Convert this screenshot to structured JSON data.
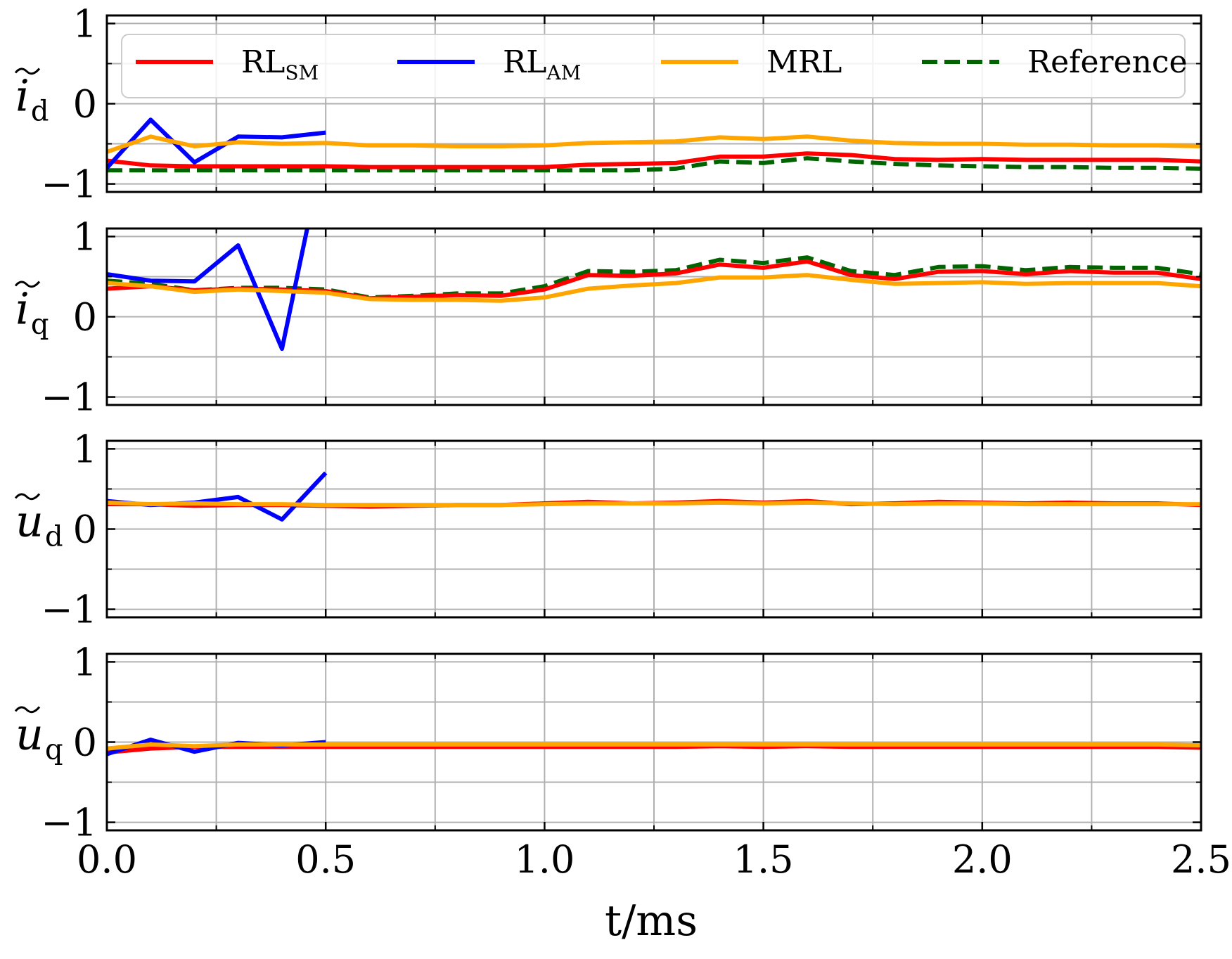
{
  "chart_data": {
    "type": "line",
    "layout": "4 vertically stacked subplots sharing x axis",
    "xlabel": "t/ms",
    "xlim": [
      0.0,
      2.5
    ],
    "x_ticks": [
      0.0,
      0.5,
      1.0,
      1.5,
      2.0,
      2.5
    ],
    "x_tick_labels": [
      "0.0",
      "0.5",
      "1.0",
      "1.5",
      "2.0",
      "2.5"
    ],
    "x_minor_ticks": [
      0.25,
      0.75,
      1.25,
      1.75,
      2.25
    ],
    "grid": true,
    "legend": {
      "placement": "top (inside first subplot), 4 columns",
      "entries": [
        {
          "key": "rl_sm",
          "text": "RL",
          "subscript": "SM"
        },
        {
          "key": "rl_am",
          "text": "RL",
          "subscript": "AM"
        },
        {
          "key": "mrl",
          "text": "MRL",
          "subscript": ""
        },
        {
          "key": "reference",
          "text": "Reference",
          "subscript": ""
        }
      ]
    },
    "colors": {
      "rl_sm": "#ff0000",
      "rl_am": "#0000ff",
      "mrl": "#ffa500",
      "reference": "#006400",
      "grid": "#b0b0b0"
    },
    "subplots": [
      {
        "ylabel_base": "i",
        "ylabel_sub": "d",
        "ylim": [
          -1.1,
          1.1
        ],
        "y_ticks": [
          -1,
          0,
          1
        ],
        "y_tick_labels": [
          "−1",
          "0",
          "1"
        ],
        "series": [
          {
            "key": "reference",
            "style": "dashed",
            "x": [
              0,
              0.1,
              0.2,
              0.3,
              0.4,
              0.5,
              0.6,
              0.7,
              0.8,
              0.9,
              1.0,
              1.1,
              1.2,
              1.3,
              1.4,
              1.5,
              1.6,
              1.7,
              1.8,
              1.9,
              2.0,
              2.1,
              2.2,
              2.3,
              2.4,
              2.5
            ],
            "y": [
              -0.83,
              -0.83,
              -0.83,
              -0.83,
              -0.83,
              -0.83,
              -0.83,
              -0.83,
              -0.83,
              -0.83,
              -0.83,
              -0.83,
              -0.83,
              -0.81,
              -0.72,
              -0.74,
              -0.68,
              -0.72,
              -0.75,
              -0.77,
              -0.78,
              -0.79,
              -0.79,
              -0.8,
              -0.8,
              -0.81
            ]
          },
          {
            "key": "rl_sm",
            "style": "solid",
            "x": [
              0,
              0.1,
              0.2,
              0.3,
              0.4,
              0.5,
              0.6,
              0.7,
              0.8,
              0.9,
              1.0,
              1.1,
              1.2,
              1.3,
              1.4,
              1.5,
              1.6,
              1.7,
              1.8,
              1.9,
              2.0,
              2.1,
              2.2,
              2.3,
              2.4,
              2.5
            ],
            "y": [
              -0.71,
              -0.77,
              -0.78,
              -0.78,
              -0.78,
              -0.78,
              -0.79,
              -0.79,
              -0.79,
              -0.79,
              -0.79,
              -0.76,
              -0.75,
              -0.74,
              -0.66,
              -0.66,
              -0.62,
              -0.64,
              -0.69,
              -0.7,
              -0.69,
              -0.7,
              -0.7,
              -0.7,
              -0.7,
              -0.72
            ]
          },
          {
            "key": "rl_am",
            "style": "solid",
            "x": [
              0,
              0.1,
              0.2,
              0.3,
              0.4,
              0.5
            ],
            "y": [
              -0.8,
              -0.2,
              -0.73,
              -0.41,
              -0.42,
              -0.36
            ]
          },
          {
            "key": "mrl",
            "style": "solid",
            "x": [
              0,
              0.1,
              0.2,
              0.3,
              0.4,
              0.5,
              0.6,
              0.7,
              0.8,
              0.9,
              1.0,
              1.1,
              1.2,
              1.3,
              1.4,
              1.5,
              1.6,
              1.7,
              1.8,
              1.9,
              2.0,
              2.1,
              2.2,
              2.3,
              2.4,
              2.5
            ],
            "y": [
              -0.6,
              -0.41,
              -0.53,
              -0.48,
              -0.5,
              -0.49,
              -0.52,
              -0.52,
              -0.53,
              -0.53,
              -0.52,
              -0.49,
              -0.48,
              -0.47,
              -0.42,
              -0.44,
              -0.41,
              -0.46,
              -0.49,
              -0.5,
              -0.5,
              -0.51,
              -0.51,
              -0.52,
              -0.52,
              -0.53
            ]
          }
        ]
      },
      {
        "ylabel_base": "i",
        "ylabel_sub": "q",
        "ylim": [
          -1.1,
          1.1
        ],
        "y_ticks": [
          -1,
          0,
          1
        ],
        "y_tick_labels": [
          "−1",
          "0",
          "1"
        ],
        "series": [
          {
            "key": "reference",
            "style": "dashed",
            "x": [
              0,
              0.1,
              0.2,
              0.3,
              0.4,
              0.5,
              0.6,
              0.7,
              0.8,
              0.9,
              1.0,
              1.1,
              1.2,
              1.3,
              1.4,
              1.5,
              1.6,
              1.7,
              1.8,
              1.9,
              2.0,
              2.1,
              2.2,
              2.3,
              2.4,
              2.5
            ],
            "y": [
              0.45,
              0.41,
              0.33,
              0.36,
              0.36,
              0.34,
              0.24,
              0.26,
              0.29,
              0.29,
              0.38,
              0.57,
              0.56,
              0.58,
              0.71,
              0.67,
              0.74,
              0.57,
              0.52,
              0.62,
              0.63,
              0.58,
              0.62,
              0.61,
              0.61,
              0.53
            ]
          },
          {
            "key": "rl_sm",
            "style": "solid",
            "x": [
              0,
              0.1,
              0.2,
              0.3,
              0.4,
              0.5,
              0.6,
              0.7,
              0.8,
              0.9,
              1.0,
              1.1,
              1.2,
              1.3,
              1.4,
              1.5,
              1.6,
              1.7,
              1.8,
              1.9,
              2.0,
              2.1,
              2.2,
              2.3,
              2.4,
              2.5
            ],
            "y": [
              0.35,
              0.38,
              0.33,
              0.35,
              0.34,
              0.32,
              0.23,
              0.25,
              0.27,
              0.26,
              0.34,
              0.52,
              0.51,
              0.54,
              0.65,
              0.61,
              0.69,
              0.52,
              0.47,
              0.56,
              0.57,
              0.53,
              0.57,
              0.55,
              0.55,
              0.47
            ]
          },
          {
            "key": "rl_am",
            "style": "solid",
            "x": [
              0,
              0.1,
              0.2,
              0.3,
              0.4,
              0.5
            ],
            "y": [
              0.53,
              0.45,
              0.44,
              0.89,
              -0.4,
              2.2
            ]
          },
          {
            "key": "mrl",
            "style": "solid",
            "x": [
              0,
              0.1,
              0.2,
              0.3,
              0.4,
              0.5,
              0.6,
              0.7,
              0.8,
              0.9,
              1.0,
              1.1,
              1.2,
              1.3,
              1.4,
              1.5,
              1.6,
              1.7,
              1.8,
              1.9,
              2.0,
              2.1,
              2.2,
              2.3,
              2.4,
              2.5
            ],
            "y": [
              0.42,
              0.38,
              0.31,
              0.34,
              0.32,
              0.3,
              0.22,
              0.21,
              0.21,
              0.2,
              0.24,
              0.35,
              0.39,
              0.42,
              0.49,
              0.49,
              0.52,
              0.46,
              0.41,
              0.42,
              0.43,
              0.41,
              0.42,
              0.42,
              0.42,
              0.38
            ]
          }
        ]
      },
      {
        "ylabel_base": "u",
        "ylabel_sub": "d",
        "ylim": [
          -1.1,
          1.1
        ],
        "y_ticks": [
          -1,
          0,
          1
        ],
        "y_tick_labels": [
          "−1",
          "0",
          "1"
        ],
        "series": [
          {
            "key": "rl_sm",
            "style": "solid",
            "x": [
              0,
              0.1,
              0.2,
              0.3,
              0.4,
              0.5,
              0.6,
              0.7,
              0.8,
              0.9,
              1.0,
              1.1,
              1.2,
              1.3,
              1.4,
              1.5,
              1.6,
              1.7,
              1.8,
              1.9,
              2.0,
              2.1,
              2.2,
              2.3,
              2.4,
              2.5
            ],
            "y": [
              0.31,
              0.31,
              0.29,
              0.3,
              0.3,
              0.29,
              0.28,
              0.29,
              0.3,
              0.3,
              0.32,
              0.34,
              0.32,
              0.33,
              0.35,
              0.33,
              0.35,
              0.31,
              0.32,
              0.34,
              0.33,
              0.32,
              0.33,
              0.32,
              0.32,
              0.3
            ]
          },
          {
            "key": "rl_am",
            "style": "solid",
            "x": [
              0,
              0.1,
              0.2,
              0.3,
              0.4,
              0.5
            ],
            "y": [
              0.35,
              0.3,
              0.33,
              0.4,
              0.12,
              0.7
            ]
          },
          {
            "key": "mrl",
            "style": "solid",
            "x": [
              0,
              0.1,
              0.2,
              0.3,
              0.4,
              0.5,
              0.6,
              0.7,
              0.8,
              0.9,
              1.0,
              1.1,
              1.2,
              1.3,
              1.4,
              1.5,
              1.6,
              1.7,
              1.8,
              1.9,
              2.0,
              2.1,
              2.2,
              2.3,
              2.4,
              2.5
            ],
            "y": [
              0.33,
              0.31,
              0.32,
              0.31,
              0.31,
              0.3,
              0.3,
              0.3,
              0.3,
              0.3,
              0.31,
              0.32,
              0.32,
              0.32,
              0.33,
              0.32,
              0.33,
              0.32,
              0.31,
              0.32,
              0.32,
              0.31,
              0.31,
              0.31,
              0.31,
              0.31
            ]
          }
        ]
      },
      {
        "ylabel_base": "u",
        "ylabel_sub": "q",
        "ylim": [
          -1.1,
          1.1
        ],
        "y_ticks": [
          -1,
          0,
          1
        ],
        "y_tick_labels": [
          "−1",
          "0",
          "1"
        ],
        "series": [
          {
            "key": "rl_sm",
            "style": "solid",
            "x": [
              0,
              0.1,
              0.2,
              0.3,
              0.4,
              0.5,
              0.6,
              0.7,
              0.8,
              0.9,
              1.0,
              1.1,
              1.2,
              1.3,
              1.4,
              1.5,
              1.6,
              1.7,
              1.8,
              1.9,
              2.0,
              2.1,
              2.2,
              2.3,
              2.4,
              2.5
            ],
            "y": [
              -0.13,
              -0.08,
              -0.06,
              -0.06,
              -0.06,
              -0.06,
              -0.06,
              -0.06,
              -0.06,
              -0.06,
              -0.06,
              -0.06,
              -0.06,
              -0.06,
              -0.05,
              -0.06,
              -0.05,
              -0.06,
              -0.06,
              -0.06,
              -0.06,
              -0.06,
              -0.06,
              -0.06,
              -0.06,
              -0.07
            ]
          },
          {
            "key": "rl_am",
            "style": "solid",
            "x": [
              0,
              0.1,
              0.2,
              0.3,
              0.4,
              0.5
            ],
            "y": [
              -0.15,
              0.03,
              -0.12,
              -0.01,
              -0.04,
              0.0
            ]
          },
          {
            "key": "mrl",
            "style": "solid",
            "x": [
              0,
              0.1,
              0.2,
              0.3,
              0.4,
              0.5,
              0.6,
              0.7,
              0.8,
              0.9,
              1.0,
              1.1,
              1.2,
              1.3,
              1.4,
              1.5,
              1.6,
              1.7,
              1.8,
              1.9,
              2.0,
              2.1,
              2.2,
              2.3,
              2.4,
              2.5
            ],
            "y": [
              -0.08,
              -0.03,
              -0.05,
              -0.03,
              -0.03,
              -0.03,
              -0.03,
              -0.03,
              -0.03,
              -0.03,
              -0.03,
              -0.03,
              -0.03,
              -0.03,
              -0.03,
              -0.03,
              -0.03,
              -0.03,
              -0.03,
              -0.03,
              -0.03,
              -0.03,
              -0.03,
              -0.03,
              -0.03,
              -0.04
            ]
          }
        ]
      }
    ]
  }
}
